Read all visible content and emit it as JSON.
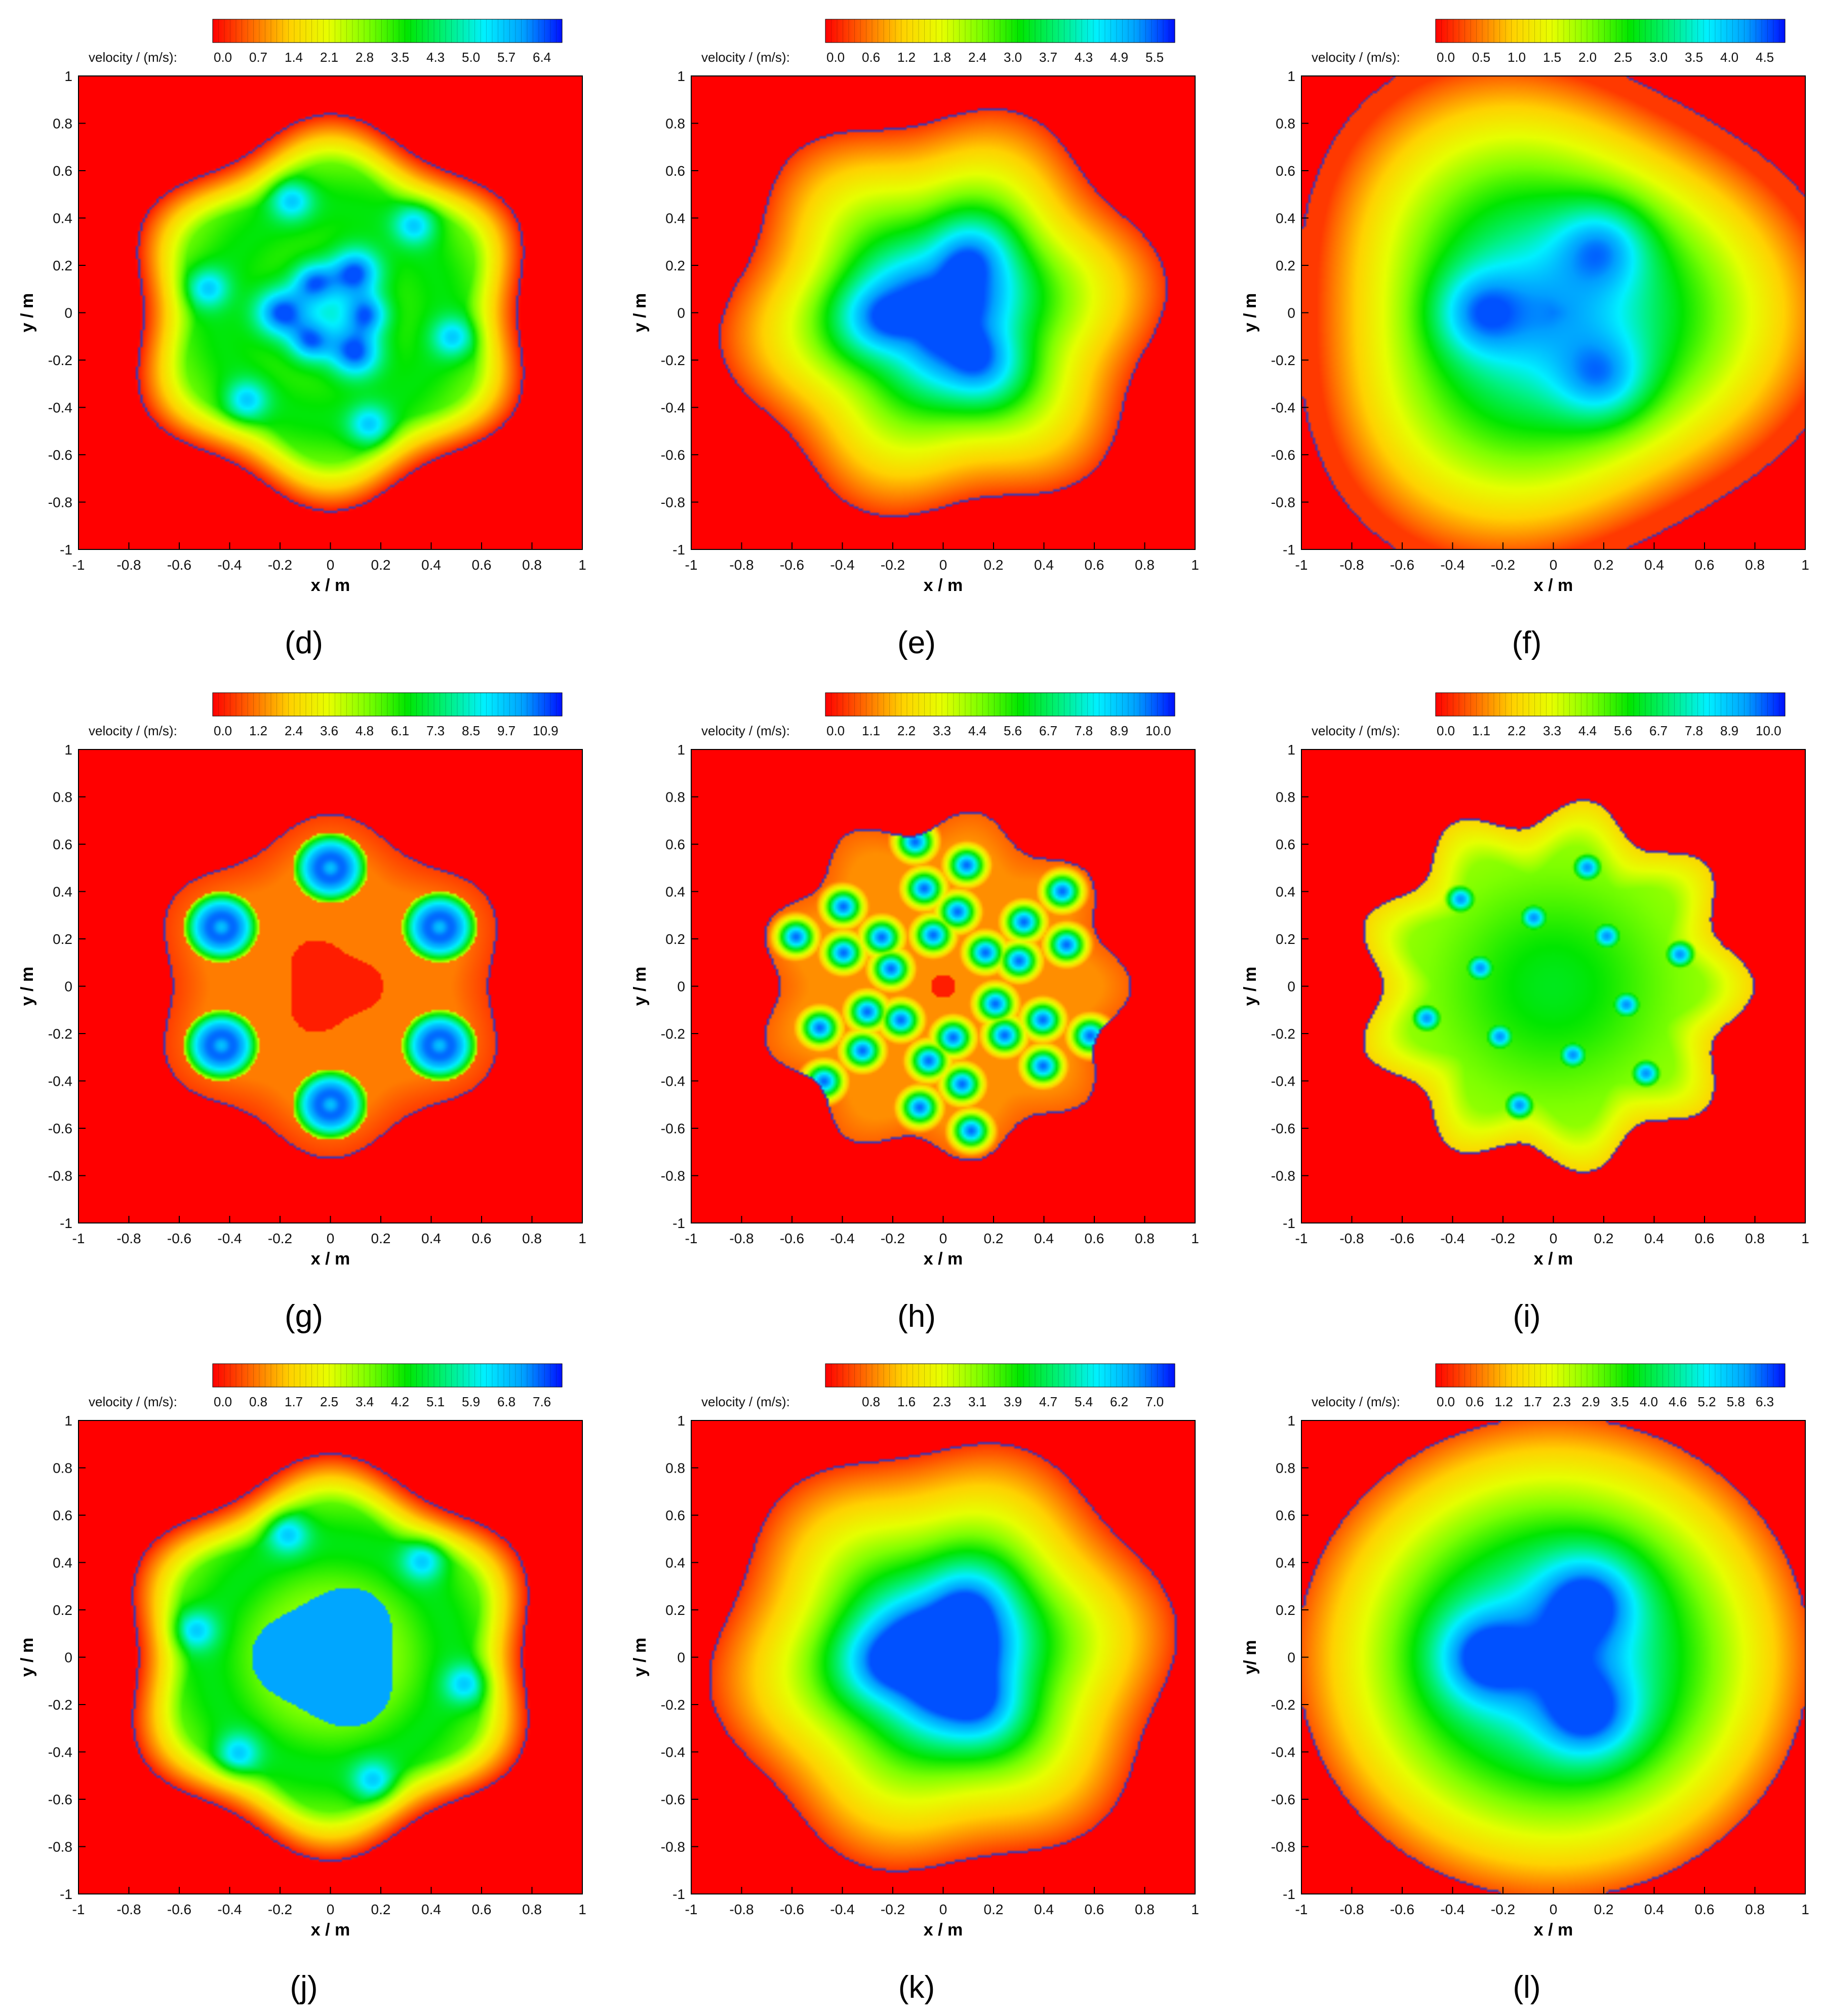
{
  "figure": {
    "colorbar_label": "velocity / (m/s):",
    "x_axis_label": "x / m",
    "y_axis_label_default": "y / m",
    "axis_ticks": [
      "-1",
      "-0.8",
      "-0.6",
      "-0.4",
      "-0.2",
      "0",
      "0.2",
      "0.4",
      "0.6",
      "0.8",
      "1"
    ],
    "colormap": [
      "#ff0000",
      "#ff6a00",
      "#ffd200",
      "#e6ff00",
      "#7dff00",
      "#00e600",
      "#00f07a",
      "#00f0ff",
      "#00a0ff",
      "#0010ff"
    ],
    "boundary_color": "#3a3ab4",
    "background_color": "#ff0000"
  },
  "chart_data": [
    {
      "type": "heatmap",
      "panel_label": "(d)",
      "colorbar_ticks": [
        "0.0",
        "0.7",
        "1.4",
        "2.1",
        "2.8",
        "3.5",
        "4.3",
        "5.0",
        "5.7",
        "6.4"
      ],
      "xlabel": "x / m",
      "ylabel": "y / m",
      "xlim": [
        -1,
        1
      ],
      "ylim": [
        -1,
        1
      ],
      "pattern": "six-lobed ring with inner three-lobed core",
      "symmetry_lobes": 6,
      "max_velocity_scale": 7.0
    },
    {
      "type": "heatmap",
      "panel_label": "(e)",
      "colorbar_ticks": [
        "0.0",
        "0.6",
        "1.2",
        "1.8",
        "2.4",
        "3.0",
        "3.7",
        "4.3",
        "4.9",
        "5.5"
      ],
      "xlabel": "x / m",
      "ylabel": "y / m",
      "xlim": [
        -1,
        1
      ],
      "ylim": [
        -1,
        1
      ],
      "pattern": "three-lobed core, hexagonal front",
      "symmetry_lobes": 3,
      "max_velocity_scale": 6.0
    },
    {
      "type": "heatmap",
      "panel_label": "(f)",
      "colorbar_ticks": [
        "0.0",
        "0.5",
        "1.0",
        "1.5",
        "2.0",
        "2.5",
        "3.0",
        "3.5",
        "4.0",
        "4.5"
      ],
      "xlabel": "x / m",
      "ylabel": "y / m",
      "xlim": [
        -1,
        1
      ],
      "ylim": [
        -1,
        1
      ],
      "pattern": "three separate cores, triangular front reaching domain edge",
      "symmetry_lobes": 3,
      "max_velocity_scale": 5.0
    },
    {
      "type": "heatmap",
      "panel_label": "(g)",
      "colorbar_ticks": [
        "0.0",
        "1.2",
        "2.4",
        "3.6",
        "4.8",
        "6.1",
        "7.3",
        "8.5",
        "9.7",
        "10.9"
      ],
      "xlabel": "x / m",
      "ylabel": "y / m",
      "xlim": [
        -1,
        1
      ],
      "ylim": [
        -1,
        1
      ],
      "pattern": "six isolated jets on a ring",
      "symmetry_lobes": 6,
      "max_velocity_scale": 12.0
    },
    {
      "type": "heatmap",
      "panel_label": "(h)",
      "colorbar_ticks": [
        "0.0",
        "1.1",
        "2.2",
        "3.3",
        "4.4",
        "5.6",
        "6.7",
        "7.8",
        "8.9",
        "10.0"
      ],
      "xlabel": "x / m",
      "ylabel": "y / m",
      "xlim": [
        -1,
        1
      ],
      "ylim": [
        -1,
        1
      ],
      "pattern": "six V-shaped jet pairs, nine-lobed front",
      "symmetry_lobes": 9,
      "max_velocity_scale": 11.0
    },
    {
      "type": "heatmap",
      "panel_label": "(i)",
      "colorbar_ticks": [
        "0.0",
        "1.1",
        "2.2",
        "3.3",
        "4.4",
        "5.6",
        "6.7",
        "7.8",
        "8.9",
        "10.0"
      ],
      "xlabel": "x / m",
      "ylabel": "y / m",
      "xlim": [
        -1,
        1
      ],
      "ylim": [
        -1,
        1
      ],
      "pattern": "twelve scattered jets, nine-lobed front",
      "symmetry_lobes": 9,
      "max_velocity_scale": 11.0
    },
    {
      "type": "heatmap",
      "panel_label": "(j)",
      "colorbar_ticks": [
        "0.0",
        "0.8",
        "1.7",
        "2.5",
        "3.4",
        "4.2",
        "5.1",
        "5.9",
        "6.8",
        "7.6"
      ],
      "xlabel": "x / m",
      "ylabel": "y / m",
      "xlim": [
        -1,
        1
      ],
      "ylim": [
        -1,
        1
      ],
      "pattern": "six-lobed ring with triangular core",
      "symmetry_lobes": 6,
      "max_velocity_scale": 8.4
    },
    {
      "type": "heatmap",
      "panel_label": "(k)",
      "colorbar_ticks": [
        "",
        "0.8",
        "1.6",
        "2.3",
        "3.1",
        "3.9",
        "4.7",
        "5.4",
        "6.2",
        "7.0"
      ],
      "xlabel": "x / m",
      "ylabel": "y / m",
      "xlim": [
        -1,
        1
      ],
      "ylim": [
        -1,
        1
      ],
      "pattern": "three-lobed core, hexagonal front",
      "symmetry_lobes": 3,
      "max_velocity_scale": 7.7
    },
    {
      "type": "heatmap",
      "panel_label": "(l)",
      "colorbar_ticks": [
        "0.0",
        "0.6",
        "1.2",
        "1.7",
        "2.3",
        "2.9",
        "3.5",
        "4.0",
        "4.6",
        "5.2",
        "5.8",
        "6.3"
      ],
      "xlabel": "x / m",
      "ylabel": "y/ m",
      "xlim": [
        -1,
        1
      ],
      "ylim": [
        -1,
        1
      ],
      "pattern": "three-lobed core, circular front reaching domain edge",
      "symmetry_lobes": 3,
      "max_velocity_scale": 7.0
    }
  ]
}
